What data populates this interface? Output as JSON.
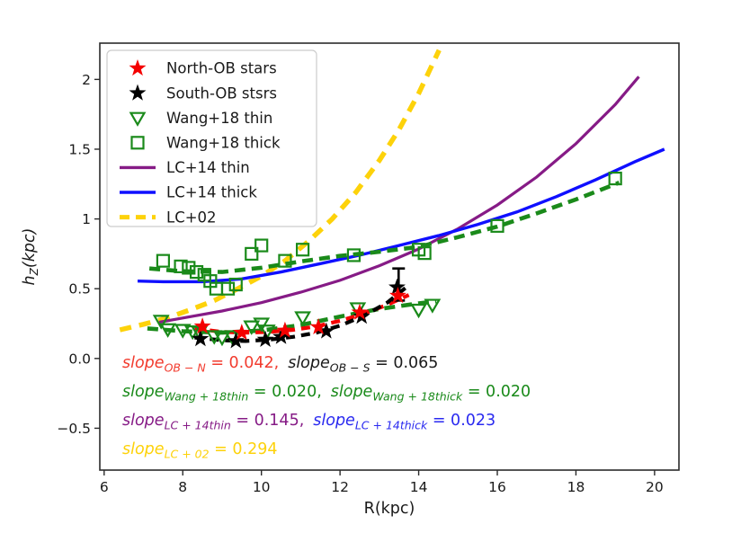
{
  "chart_data": {
    "type": "scatter",
    "title": "",
    "xlabel": "R(kpc)",
    "ylabel": {
      "prefix": "h",
      "sub": "Z",
      "suffix": "(kpc)"
    },
    "xlim": [
      5.89,
      20.62
    ],
    "ylim": [
      -0.8,
      2.26
    ],
    "xticks": [
      6,
      8,
      10,
      12,
      14,
      16,
      18,
      20
    ],
    "yticks": [
      -0.5,
      0.0,
      0.5,
      1.0,
      1.5,
      2.0
    ],
    "grid": false,
    "legend_position": "upper left",
    "colors": {
      "red": "#f40000",
      "black": "#000000",
      "green": "#1a8a1a",
      "purple": "#861b86",
      "blue": "#0f0fff",
      "gold": "#fdd20a",
      "text_black": "#1a1a1a",
      "slope_red": "#f23b2e",
      "slope_blue": "#2a2af0"
    },
    "series": [
      {
        "id": "lc02",
        "label": "LC+02",
        "type": "line",
        "color": "#fdd20a",
        "width": 5.5,
        "dash": "13 9",
        "points": [
          [
            6.4,
            0.205
          ],
          [
            7.0,
            0.245
          ],
          [
            7.6,
            0.29
          ],
          [
            8.2,
            0.35
          ],
          [
            8.8,
            0.415
          ],
          [
            9.4,
            0.5
          ],
          [
            10.0,
            0.59
          ],
          [
            10.6,
            0.7
          ],
          [
            11.2,
            0.84
          ],
          [
            11.8,
            1.0
          ],
          [
            12.4,
            1.19
          ],
          [
            13.0,
            1.42
          ],
          [
            13.5,
            1.64
          ],
          [
            14.0,
            1.9
          ],
          [
            14.52,
            2.21
          ]
        ]
      },
      {
        "id": "lc14-thin",
        "label": "LC+14 thin",
        "type": "line",
        "color": "#861b86",
        "width": 3.2,
        "points": [
          [
            7.4,
            0.26
          ],
          [
            8.0,
            0.29
          ],
          [
            9.0,
            0.34
          ],
          [
            10.0,
            0.4
          ],
          [
            11.0,
            0.475
          ],
          [
            12.0,
            0.56
          ],
          [
            13.0,
            0.665
          ],
          [
            14.0,
            0.785
          ],
          [
            15.0,
            0.93
          ],
          [
            16.0,
            1.1
          ],
          [
            17.0,
            1.3
          ],
          [
            18.0,
            1.54
          ],
          [
            19.0,
            1.82
          ],
          [
            19.6,
            2.02
          ]
        ]
      },
      {
        "id": "lc14-thick",
        "label": "LC+14 thick",
        "type": "line",
        "color": "#0f0fff",
        "width": 3.4,
        "points": [
          [
            6.85,
            0.555
          ],
          [
            7.5,
            0.55
          ],
          [
            8.5,
            0.55
          ],
          [
            9.5,
            0.57
          ],
          [
            10.5,
            0.62
          ],
          [
            11.5,
            0.68
          ],
          [
            12.5,
            0.74
          ],
          [
            13.5,
            0.81
          ],
          [
            14.5,
            0.88
          ],
          [
            15.5,
            0.96
          ],
          [
            16.5,
            1.05
          ],
          [
            17.5,
            1.16
          ],
          [
            18.5,
            1.28
          ],
          [
            19.5,
            1.41
          ],
          [
            20.25,
            1.5
          ]
        ]
      },
      {
        "id": "wang18-thick-fit",
        "label": "Wang+18 thick fit",
        "type": "line",
        "color": "#1a8a1a",
        "width": 4.6,
        "dash": "12 7",
        "points": [
          [
            7.15,
            0.645
          ],
          [
            8.0,
            0.625
          ],
          [
            9.0,
            0.62
          ],
          [
            10.0,
            0.65
          ],
          [
            11.0,
            0.695
          ],
          [
            12.0,
            0.735
          ],
          [
            13.0,
            0.765
          ],
          [
            14.0,
            0.8
          ],
          [
            15.0,
            0.87
          ],
          [
            16.0,
            0.945
          ],
          [
            17.0,
            1.04
          ],
          [
            18.0,
            1.14
          ],
          [
            19.1,
            1.26
          ]
        ]
      },
      {
        "id": "wang18-thin-fit",
        "label": "Wang+18 thin fit",
        "type": "line",
        "color": "#1a8a1a",
        "width": 4.6,
        "dash": "12 7",
        "points": [
          [
            7.1,
            0.215
          ],
          [
            8.0,
            0.195
          ],
          [
            9.0,
            0.185
          ],
          [
            10.0,
            0.2
          ],
          [
            11.0,
            0.24
          ],
          [
            12.0,
            0.3
          ],
          [
            13.0,
            0.355
          ],
          [
            14.0,
            0.395
          ],
          [
            14.45,
            0.41
          ]
        ]
      },
      {
        "id": "north-fit",
        "label": "North-OB fit",
        "type": "line",
        "color": "#f40000",
        "width": 4.2,
        "dash": "10 7",
        "points": [
          [
            8.3,
            0.215
          ],
          [
            9.0,
            0.19
          ],
          [
            9.6,
            0.185
          ],
          [
            10.2,
            0.19
          ],
          [
            10.8,
            0.205
          ],
          [
            11.4,
            0.23
          ],
          [
            12.0,
            0.27
          ],
          [
            12.6,
            0.32
          ],
          [
            13.2,
            0.385
          ],
          [
            13.75,
            0.455
          ]
        ]
      },
      {
        "id": "south-fit",
        "label": "South-OB fit",
        "type": "line",
        "color": "#000000",
        "width": 4.2,
        "dash": "10 7",
        "points": [
          [
            8.3,
            0.15
          ],
          [
            9.0,
            0.13
          ],
          [
            9.6,
            0.125
          ],
          [
            10.2,
            0.135
          ],
          [
            10.8,
            0.155
          ],
          [
            11.4,
            0.185
          ],
          [
            12.0,
            0.235
          ],
          [
            12.6,
            0.305
          ],
          [
            13.2,
            0.4
          ],
          [
            13.75,
            0.525
          ]
        ]
      },
      {
        "id": "wang18-thick",
        "label": "Wang+18 thick",
        "type": "scatter",
        "marker": "square-open",
        "color": "#1a8a1a",
        "points": [
          [
            7.5,
            0.7
          ],
          [
            7.95,
            0.66
          ],
          [
            8.15,
            0.65
          ],
          [
            8.35,
            0.62
          ],
          [
            8.55,
            0.6
          ],
          [
            8.7,
            0.555
          ],
          [
            8.85,
            0.5
          ],
          [
            9.15,
            0.5
          ],
          [
            9.35,
            0.53
          ],
          [
            9.75,
            0.75
          ],
          [
            10.0,
            0.81
          ],
          [
            10.6,
            0.7
          ],
          [
            11.05,
            0.78
          ],
          [
            12.35,
            0.74
          ],
          [
            14.0,
            0.78
          ],
          [
            14.15,
            0.755
          ],
          [
            16.0,
            0.95
          ],
          [
            19.0,
            1.29
          ]
        ]
      },
      {
        "id": "wang18-thin",
        "label": "Wang+18 thin",
        "type": "scatter",
        "marker": "triangle-down-open",
        "color": "#1a8a1a",
        "points": [
          [
            7.45,
            0.27
          ],
          [
            7.62,
            0.21
          ],
          [
            8.0,
            0.205
          ],
          [
            8.25,
            0.195
          ],
          [
            8.42,
            0.19
          ],
          [
            8.8,
            0.16
          ],
          [
            9.0,
            0.15
          ],
          [
            9.25,
            0.16
          ],
          [
            9.75,
            0.23
          ],
          [
            10.0,
            0.25
          ],
          [
            10.15,
            0.2
          ],
          [
            11.05,
            0.295
          ],
          [
            12.45,
            0.36
          ],
          [
            14.0,
            0.35
          ],
          [
            14.35,
            0.385
          ]
        ]
      },
      {
        "id": "south-ob",
        "label": "South-OB stsrs",
        "type": "scatter",
        "marker": "star",
        "color": "#000000",
        "points": [
          [
            8.45,
            0.14
          ],
          [
            9.35,
            0.125
          ],
          [
            10.1,
            0.135
          ],
          [
            10.5,
            0.155
          ],
          [
            11.65,
            0.195
          ],
          [
            12.55,
            0.3
          ],
          [
            13.45,
            0.51
          ]
        ],
        "errorbar": {
          "x": 13.49,
          "lo": 0.415,
          "hi": 0.645
        }
      },
      {
        "id": "north-ob",
        "label": "North-OB stars",
        "type": "scatter",
        "marker": "star",
        "color": "#f40000",
        "points": [
          [
            8.5,
            0.23
          ],
          [
            9.5,
            0.185
          ],
          [
            10.6,
            0.2
          ],
          [
            11.45,
            0.225
          ],
          [
            12.5,
            0.33
          ],
          [
            13.47,
            0.45
          ]
        ]
      }
    ],
    "legend": [
      {
        "label": "North-OB stars",
        "marker": "star",
        "color": "#f40000"
      },
      {
        "label": "South-OB stsrs",
        "marker": "star",
        "color": "#000000"
      },
      {
        "label": "Wang+18 thin",
        "marker": "triangle-down-open",
        "color": "#1a8a1a"
      },
      {
        "label": "Wang+18 thick",
        "marker": "square-open",
        "color": "#1a8a1a"
      },
      {
        "label": "LC+14 thin",
        "marker": "line",
        "color": "#861b86"
      },
      {
        "label": "LC+14 thick",
        "marker": "line",
        "color": "#0f0fff"
      },
      {
        "label": "LC+02",
        "marker": "dashed-line",
        "color": "#fdd20a"
      }
    ],
    "annotations": [
      {
        "segments": [
          {
            "word": "slope",
            "sub": "OB − N",
            "value": " = 0.042,",
            "color": "#f23b2e"
          },
          {
            "word": "slope",
            "sub": "OB − S",
            "value": " = 0.065",
            "color": "#1a1a1a"
          }
        ]
      },
      {
        "segments": [
          {
            "word": "slope",
            "sub": "Wang + 18thin",
            "value": " = 0.020,",
            "color": "#1a8a1a"
          },
          {
            "word": "slope",
            "sub": "Wang + 18thick",
            "value": " = 0.020",
            "color": "#1a8a1a"
          }
        ]
      },
      {
        "segments": [
          {
            "word": "slope",
            "sub": "LC + 14thin",
            "value": " = 0.145,",
            "color": "#861b86"
          },
          {
            "word": "slope",
            "sub": "LC + 14thick",
            "value": " = 0.023",
            "color": "#2a2af0"
          }
        ]
      },
      {
        "segments": [
          {
            "word": "slope",
            "sub": "LC + 02",
            "value": " = 0.294",
            "color": "#fdd20a"
          }
        ]
      }
    ]
  }
}
